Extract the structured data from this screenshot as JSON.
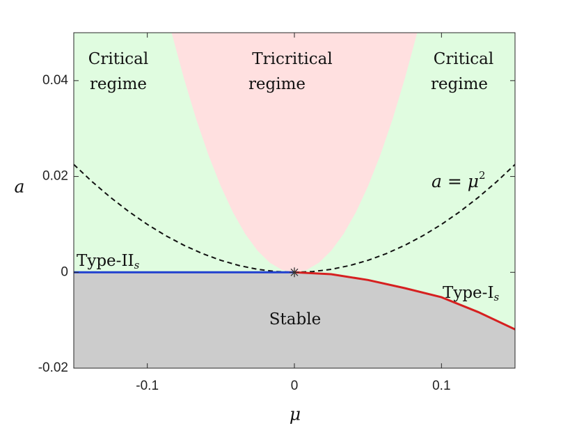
{
  "chart_data": {
    "type": "line",
    "xlabel": "μ",
    "ylabel": "a",
    "xlim": [
      -0.15,
      0.15
    ],
    "ylim": [
      -0.02,
      0.05
    ],
    "xticks": [
      -0.1,
      0,
      0.1
    ],
    "yticks": [
      -0.02,
      0,
      0.02,
      0.04
    ],
    "background_color": "#e0fce0",
    "regions": [
      {
        "name": "Tricritical regime",
        "color": "#ffe0e0",
        "x": [
          -0.0835,
          -0.07515,
          -0.0668,
          -0.05845,
          -0.0501,
          -0.04175,
          -0.0334,
          -0.02505,
          -0.0167,
          -0.00835,
          0,
          0.00835,
          0.0167,
          0.02505,
          0.0334,
          0.04175,
          0.0501,
          0.05845,
          0.0668,
          0.07515,
          0.0835
        ],
        "values": [
          0.05,
          0.0405,
          0.032,
          0.0245,
          0.018,
          0.0125,
          0.008,
          0.0045,
          0.002,
          0.0005,
          0,
          0.0005,
          0.002,
          0.0045,
          0.008,
          0.0125,
          0.018,
          0.0245,
          0.032,
          0.0405,
          0.05
        ]
      },
      {
        "name": "Stable",
        "color": "#cccccc"
      }
    ],
    "series": [
      {
        "name": "a = μ²",
        "color": "#111111",
        "dashed": true,
        "x": [
          -0.15,
          -0.1375,
          -0.125,
          -0.1125,
          -0.1,
          -0.0875,
          -0.075,
          -0.0625,
          -0.05,
          -0.0375,
          -0.025,
          -0.0125,
          0,
          0.0125,
          0.025,
          0.0375,
          0.05,
          0.0625,
          0.075,
          0.0875,
          0.1,
          0.1125,
          0.125,
          0.1375,
          0.15
        ],
        "values": [
          0.0225,
          0.01890625,
          0.015625,
          0.01265625,
          0.01,
          0.00765625,
          0.005625,
          0.00390625,
          0.0025,
          0.00140625,
          0.000625,
          0.00015625,
          0,
          0.00015625,
          0.000625,
          0.00140625,
          0.0025,
          0.00390625,
          0.005625,
          0.00765625,
          0.01,
          0.01265625,
          0.015625,
          0.01890625,
          0.0225
        ]
      },
      {
        "name": "Type-II",
        "color": "#1f3fd0",
        "x": [
          -0.15,
          0
        ],
        "values": [
          0,
          0
        ]
      },
      {
        "name": "Type-I",
        "color": "#d62020",
        "x": [
          0,
          0.025,
          0.05,
          0.075,
          0.1,
          0.125,
          0.15
        ],
        "values": [
          0,
          -0.0004,
          -0.0016,
          -0.0033,
          -0.0052,
          -0.0083,
          -0.0119
        ]
      }
    ],
    "marker": {
      "x": 0,
      "y": 0,
      "color": "#333333"
    },
    "annotations": [
      {
        "text": "Critical"
      },
      {
        "text": "regime"
      },
      {
        "text": "Tricritical"
      },
      {
        "text": "regime"
      },
      {
        "text": "Critical"
      },
      {
        "text": "regime"
      },
      {
        "text": "a = μ",
        "sup": "2"
      },
      {
        "text": "Type-II",
        "sub": "s"
      },
      {
        "text": "Stable"
      },
      {
        "text": "Type-I",
        "sub": "s"
      }
    ]
  }
}
